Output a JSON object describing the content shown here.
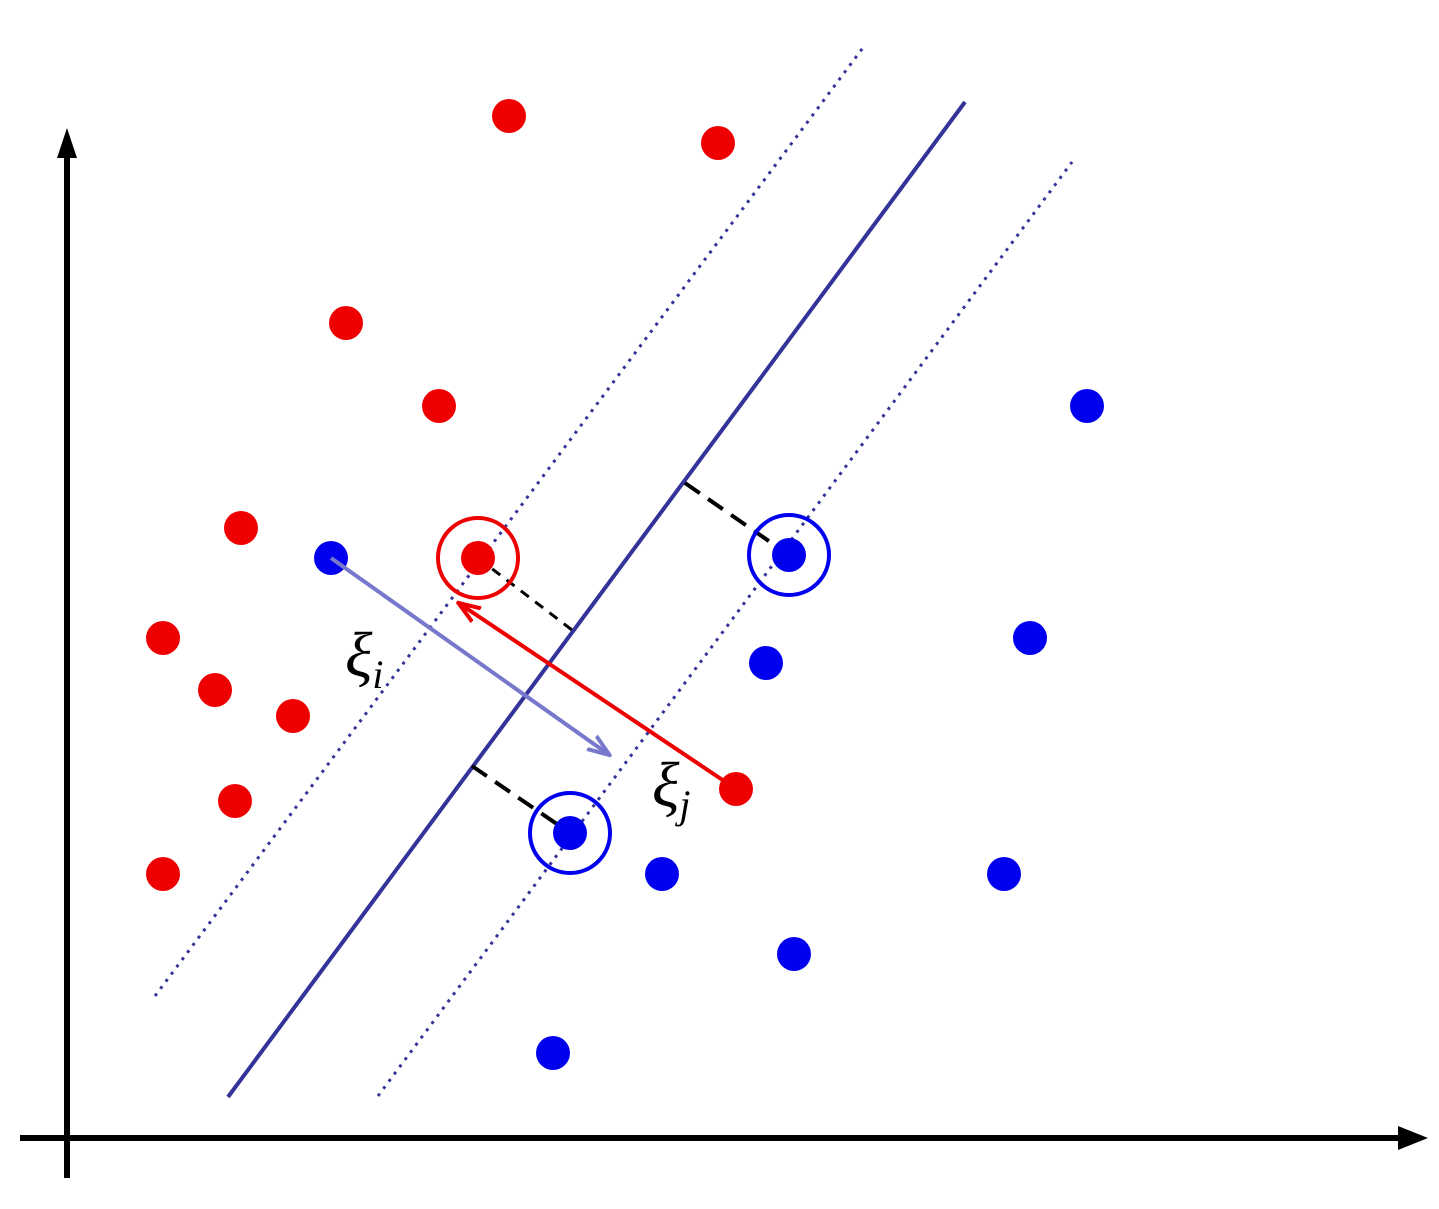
{
  "labels": [
    {
      "symbol": "ξ",
      "subscript": "i"
    },
    {
      "symbol": "ξ",
      "subscript": "j"
    }
  ]
}
